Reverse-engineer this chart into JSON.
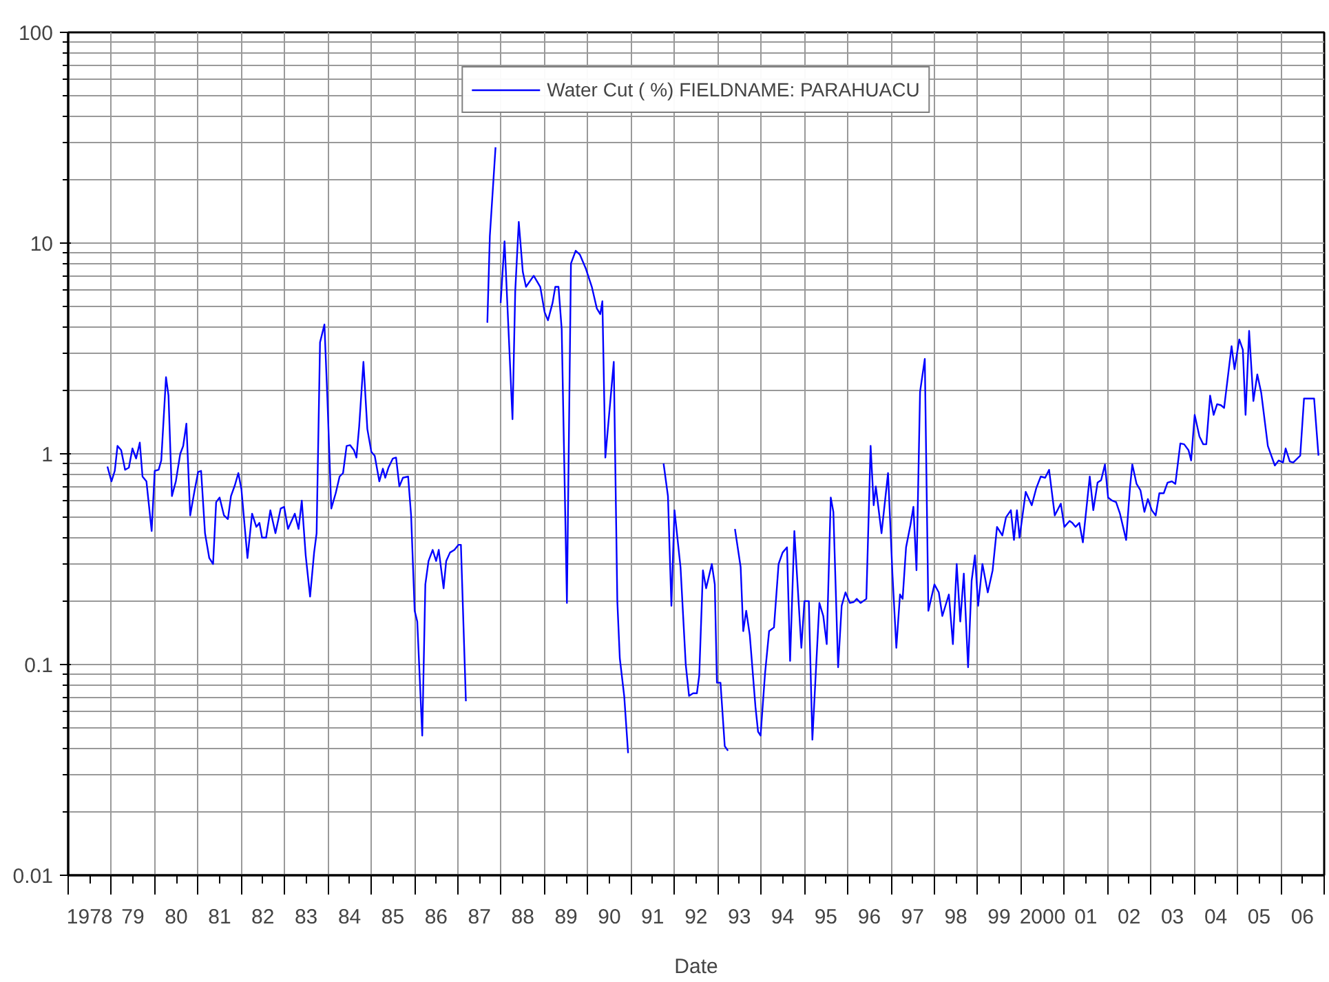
{
  "chart_data": {
    "type": "line",
    "xlabel": "Date",
    "log": "y",
    "grid": true,
    "legend": "top",
    "xlim": [
      "1978",
      "2007"
    ],
    "ylim": [
      0.01,
      100
    ],
    "yticks": [
      0.01,
      0.1,
      1,
      10,
      100
    ],
    "xticks": [
      {
        "value": "1978",
        "label": null
      },
      {
        "value": "1978-07",
        "label": "1978"
      },
      {
        "value": "1979",
        "label": null
      },
      {
        "value": "1979-07",
        "label": "79"
      },
      {
        "value": "1980",
        "label": null
      },
      {
        "value": "1980-07",
        "label": "80"
      },
      {
        "value": "1981",
        "label": null
      },
      {
        "value": "1981-07",
        "label": "81"
      },
      {
        "value": "1982",
        "label": null
      },
      {
        "value": "1982-07",
        "label": "82"
      },
      {
        "value": "1983",
        "label": null
      },
      {
        "value": "1983-07",
        "label": "83"
      },
      {
        "value": "1984",
        "label": null
      },
      {
        "value": "1984-07",
        "label": "84"
      },
      {
        "value": "1985",
        "label": null
      },
      {
        "value": "1985-07",
        "label": "85"
      },
      {
        "value": "1986",
        "label": null
      },
      {
        "value": "1986-07",
        "label": "86"
      },
      {
        "value": "1987",
        "label": null
      },
      {
        "value": "1987-07",
        "label": "87"
      },
      {
        "value": "1988",
        "label": null
      },
      {
        "value": "1988-07",
        "label": "88"
      },
      {
        "value": "1989",
        "label": null
      },
      {
        "value": "1989-07",
        "label": "89"
      },
      {
        "value": "1990",
        "label": null
      },
      {
        "value": "1990-07",
        "label": "90"
      },
      {
        "value": "1991",
        "label": null
      },
      {
        "value": "1991-07",
        "label": "91"
      },
      {
        "value": "1992",
        "label": null
      },
      {
        "value": "1992-07",
        "label": "92"
      },
      {
        "value": "1993",
        "label": null
      },
      {
        "value": "1993-07",
        "label": "93"
      },
      {
        "value": "1994",
        "label": null
      },
      {
        "value": "1994-07",
        "label": "94"
      },
      {
        "value": "1995",
        "label": null
      },
      {
        "value": "1995-07",
        "label": "95"
      },
      {
        "value": "1996",
        "label": null
      },
      {
        "value": "1996-07",
        "label": "96"
      },
      {
        "value": "1997",
        "label": null
      },
      {
        "value": "1997-07",
        "label": "97"
      },
      {
        "value": "1998",
        "label": null
      },
      {
        "value": "1998-07",
        "label": "98"
      },
      {
        "value": "1999",
        "label": null
      },
      {
        "value": "1999-07",
        "label": "99"
      },
      {
        "value": "2000",
        "label": null
      },
      {
        "value": "2000-07",
        "label": "2000"
      },
      {
        "value": "2001",
        "label": null
      },
      {
        "value": "2001-07",
        "label": "01"
      },
      {
        "value": "2002",
        "label": null
      },
      {
        "value": "2002-07",
        "label": "02"
      },
      {
        "value": "2003",
        "label": null
      },
      {
        "value": "2003-07",
        "label": "03"
      },
      {
        "value": "2004",
        "label": null
      },
      {
        "value": "2004-07",
        "label": "04"
      },
      {
        "value": "2005",
        "label": null
      },
      {
        "value": "2005-07",
        "label": "05"
      },
      {
        "value": "2006",
        "label": null
      },
      {
        "value": "2006-07",
        "label": "06"
      },
      {
        "value": "2007",
        "label": null
      }
    ],
    "series": [
      {
        "name": "Water Cut ( %) FIELDNAME: PARAHUACU",
        "color": "#0000ff",
        "x": [
          "1978-11-28",
          "1979-01-01",
          "1979-01-29",
          "1979-02-21",
          "1979-03-24",
          "1979-04-26",
          "1979-05-28",
          "1979-06-27",
          "1979-07-28",
          "1979-08-28",
          "1979-09-20",
          "1979-10-23",
          "1979-12-06",
          "1980-01-01",
          "1980-02-03",
          "1980-02-25",
          "1980-04-05",
          "1980-04-26",
          "1980-05-25",
          "1980-06-27",
          "1980-08-03",
          "1980-08-28",
          "1980-09-24",
          "1980-10-26",
          "1980-12-02",
          "1981-01-01",
          "1981-01-26",
          "1981-02-28",
          "1981-04-05",
          "1981-05-07",
          "1981-06-02",
          "1981-07-01",
          "1981-08-07",
          "1981-09-09",
          "1981-10-05",
          "1981-11-07",
          "1981-12-06",
          "1982-01-01",
          "1982-02-21",
          "1982-04-01",
          "1982-05-07",
          "1982-06-02",
          "1982-06-24",
          "1982-07-28",
          "1982-09-02",
          "1982-10-15",
          "1982-11-28",
          "1982-12-27",
          "1983-01-29",
          "1983-03-27",
          "1983-04-28",
          "1983-05-25",
          "1983-06-27",
          "1983-08-03",
          "1983-09-06",
          "1983-09-27",
          "1983-10-26",
          "1983-12-02",
          "1983-12-27",
          "1984-01-29",
          "1984-03-06",
          "1984-04-08",
          "1984-05-07",
          "1984-06-06",
          "1984-07-05",
          "1984-08-07",
          "1984-08-28",
          "1984-09-20",
          "1984-10-26",
          "1984-11-28",
          "1985-01-01",
          "1985-01-29",
          "1985-03-09",
          "1985-04-08",
          "1985-04-28",
          "1985-05-25",
          "1985-07-01",
          "1985-07-28",
          "1985-08-25",
          "1985-09-24",
          "1985-11-07",
          "1985-12-02",
          "1986-01-01",
          "1986-01-23",
          "1986-03-06",
          "1986-04-01",
          "1986-04-28",
          "1986-06-02",
          "1986-07-01",
          "1986-07-23",
          "1986-09-02",
          "1986-09-24",
          "1986-10-26",
          "1986-12-02",
          "1987-01-05",
          "1987-01-26",
          "1987-03-09",
          "1987-05-25",
          "1987-09-06",
          "1987-09-27",
          "1987-11-14",
          "1987-12-06",
          "1987-12-27",
          "1988-01-29",
          "1988-04-05",
          "1988-04-28",
          "1988-05-28",
          "1988-07-01",
          "1988-07-28",
          "1988-10-01",
          "1988-11-25",
          "1989-01-01",
          "1989-01-29",
          "1989-03-09",
          "1989-04-01",
          "1989-04-28",
          "1989-05-25",
          "1989-07-08",
          "1989-08-11",
          "1989-09-20",
          "1989-10-26",
          "1989-12-13",
          "1990-02-03",
          "1990-03-17",
          "1990-04-15",
          "1990-05-03",
          "1990-05-28",
          "1990-08-07",
          "1990-09-06",
          "1990-09-27",
          "1990-11-03",
          "1990-12-06",
          "1991-04-19",
          "1991-10-01",
          "1991-11-07",
          "1991-12-06",
          "1992-01-01",
          "1992-02-21",
          "1992-04-05",
          "1992-05-03",
          "1992-06-06",
          "1992-07-08",
          "1992-07-28",
          "1992-08-28",
          "1992-09-24",
          "1992-11-11",
          "1992-12-06",
          "1992-12-24",
          "1993-01-23",
          "1993-02-28",
          "1993-03-27",
          "1993-04-26",
          "1993-05-25",
          "1993-07-12",
          "1993-08-03",
          "1993-08-28",
          "1993-09-27",
          "1993-11-14",
          "1993-12-06",
          "1993-12-27",
          "1994-02-03",
          "1994-03-09",
          "1994-04-19",
          "1994-05-28",
          "1994-07-01",
          "1994-08-07",
          "1994-09-02",
          "1994-10-08",
          "1994-12-06",
          "1995-01-01",
          "1995-02-07",
          "1995-03-09",
          "1995-05-07",
          "1995-06-09",
          "1995-07-08",
          "1995-08-11",
          "1995-09-02",
          "1995-10-12",
          "1995-11-11",
          "1995-12-13",
          "1996-01-19",
          "1996-02-21",
          "1996-03-17",
          "1996-04-19",
          "1996-06-06",
          "1996-07-12",
          "1996-08-07",
          "1996-08-25",
          "1996-10-12",
          "1996-12-06",
          "1997-01-12",
          "1997-02-14",
          "1997-03-17",
          "1997-04-08",
          "1997-05-07",
          "1997-06-13",
          "1997-07-08",
          "1997-08-03",
          "1997-09-02",
          "1997-10-12",
          "1997-11-11",
          "1998-01-01",
          "1998-02-07",
          "1998-03-09",
          "1998-05-03",
          "1998-06-06",
          "1998-07-08",
          "1998-08-07",
          "1998-09-06",
          "1998-10-12",
          "1998-11-11",
          "1998-12-09",
          "1999-01-05",
          "1999-02-10",
          "1999-03-27",
          "1999-05-07",
          "1999-06-13",
          "1999-07-28",
          "1999-08-28",
          "1999-10-08",
          "1999-11-03",
          "1999-11-28",
          "1999-12-20",
          "2000-02-10",
          "2000-04-01",
          "2000-05-10",
          "2000-06-16",
          "2000-07-23",
          "2000-08-25",
          "2000-10-12",
          "2000-12-02",
          "2001-01-01",
          "2001-02-14",
          "2001-03-09",
          "2001-04-05",
          "2001-05-07",
          "2001-06-06",
          "2001-08-03",
          "2001-09-02",
          "2001-10-08",
          "2001-11-07",
          "2001-12-09",
          "2002-01-05",
          "2002-02-07",
          "2002-03-13",
          "2002-04-15",
          "2002-06-06",
          "2002-07-08",
          "2002-07-28",
          "2002-09-02",
          "2002-10-05",
          "2002-11-07",
          "2002-12-06",
          "2003-01-08",
          "2003-02-10",
          "2003-03-13",
          "2003-04-19",
          "2003-05-21",
          "2003-06-27",
          "2003-07-26",
          "2003-09-06",
          "2003-10-08",
          "2003-11-14",
          "2003-12-06",
          "2004-01-05",
          "2004-02-14",
          "2004-03-17",
          "2004-04-12",
          "2004-05-14",
          "2004-06-13",
          "2004-07-12",
          "2004-08-14",
          "2004-09-09",
          "2004-11-11",
          "2004-12-06",
          "2005-01-15",
          "2005-02-14",
          "2005-03-09",
          "2005-04-08",
          "2005-05-14",
          "2005-06-16",
          "2005-07-19",
          "2005-09-13",
          "2005-11-11",
          "2005-12-13",
          "2006-01-19",
          "2006-02-10",
          "2006-03-17",
          "2006-04-15",
          "2006-06-13",
          "2006-07-15",
          "2006-10-08",
          "2006-11-14"
        ],
        "values": [
          0.87,
          0.74,
          0.83,
          1.09,
          1.04,
          0.84,
          0.86,
          1.06,
          0.95,
          1.13,
          0.78,
          0.74,
          0.43,
          0.83,
          0.84,
          0.93,
          2.31,
          1.89,
          0.63,
          0.74,
          1.0,
          1.09,
          1.39,
          0.51,
          0.67,
          0.82,
          0.83,
          0.42,
          0.32,
          0.3,
          0.59,
          0.62,
          0.51,
          0.49,
          0.63,
          0.71,
          0.81,
          0.68,
          0.32,
          0.52,
          0.45,
          0.47,
          0.4,
          0.4,
          0.54,
          0.42,
          0.55,
          0.56,
          0.44,
          0.52,
          0.44,
          0.6,
          0.33,
          0.21,
          0.34,
          0.42,
          3.38,
          4.11,
          1.83,
          0.55,
          0.65,
          0.78,
          0.81,
          1.09,
          1.1,
          1.04,
          0.96,
          1.35,
          2.73,
          1.31,
          1.02,
          0.98,
          0.74,
          0.85,
          0.77,
          0.86,
          0.95,
          0.96,
          0.7,
          0.77,
          0.78,
          0.51,
          0.18,
          0.16,
          0.046,
          0.24,
          0.31,
          0.35,
          0.31,
          0.35,
          0.23,
          0.31,
          0.34,
          0.35,
          0.37,
          0.37,
          0.067,
          null,
          4.19,
          10.8,
          28.5,
          null,
          5.2,
          10.2,
          1.46,
          5.9,
          12.6,
          7.3,
          6.2,
          7.0,
          6.2,
          4.7,
          4.3,
          5.2,
          6.2,
          6.2,
          3.9,
          0.196,
          8.0,
          9.2,
          8.8,
          7.6,
          6.2,
          4.9,
          4.6,
          5.3,
          0.96,
          2.73,
          0.2,
          0.107,
          0.071,
          0.038,
          null,
          0.9,
          0.63,
          0.19,
          0.54,
          0.29,
          0.1,
          0.071,
          0.073,
          0.073,
          0.089,
          0.28,
          0.23,
          0.3,
          0.24,
          0.082,
          0.082,
          0.041,
          0.039,
          null,
          0.44,
          0.29,
          0.144,
          0.18,
          0.138,
          0.063,
          0.048,
          0.046,
          0.091,
          0.144,
          0.15,
          0.3,
          0.34,
          0.36,
          0.104,
          0.43,
          0.12,
          0.2,
          0.2,
          0.044,
          0.196,
          0.17,
          0.125,
          0.62,
          0.53,
          0.097,
          0.19,
          0.22,
          0.196,
          0.198,
          0.205,
          0.196,
          0.205,
          1.09,
          0.57,
          0.7,
          0.42,
          0.81,
          0.27,
          0.12,
          0.215,
          0.205,
          0.36,
          0.46,
          0.56,
          0.28,
          1.97,
          2.82,
          0.18,
          0.24,
          0.22,
          0.17,
          0.215,
          0.125,
          0.3,
          0.16,
          0.27,
          0.097,
          0.25,
          0.33,
          0.19,
          0.3,
          0.22,
          0.28,
          0.45,
          0.41,
          0.5,
          0.54,
          0.39,
          0.54,
          0.4,
          0.66,
          0.57,
          0.69,
          0.78,
          0.77,
          0.84,
          0.51,
          0.58,
          0.45,
          0.48,
          0.47,
          0.45,
          0.47,
          0.38,
          0.78,
          0.54,
          0.73,
          0.75,
          0.89,
          0.62,
          0.6,
          0.59,
          0.52,
          0.39,
          0.69,
          0.89,
          0.72,
          0.67,
          0.53,
          0.61,
          0.54,
          0.51,
          0.65,
          0.65,
          0.73,
          0.74,
          0.72,
          1.12,
          1.11,
          1.04,
          0.93,
          1.53,
          1.21,
          1.11,
          1.11,
          1.89,
          1.53,
          1.72,
          1.7,
          1.65,
          3.24,
          2.52,
          3.49,
          3.12,
          1.53,
          3.83,
          1.78,
          2.38,
          1.95,
          1.09,
          0.88,
          0.93,
          0.91,
          1.06,
          0.92,
          0.91,
          0.98,
          1.83,
          1.83,
          0.98
        ]
      }
    ]
  }
}
